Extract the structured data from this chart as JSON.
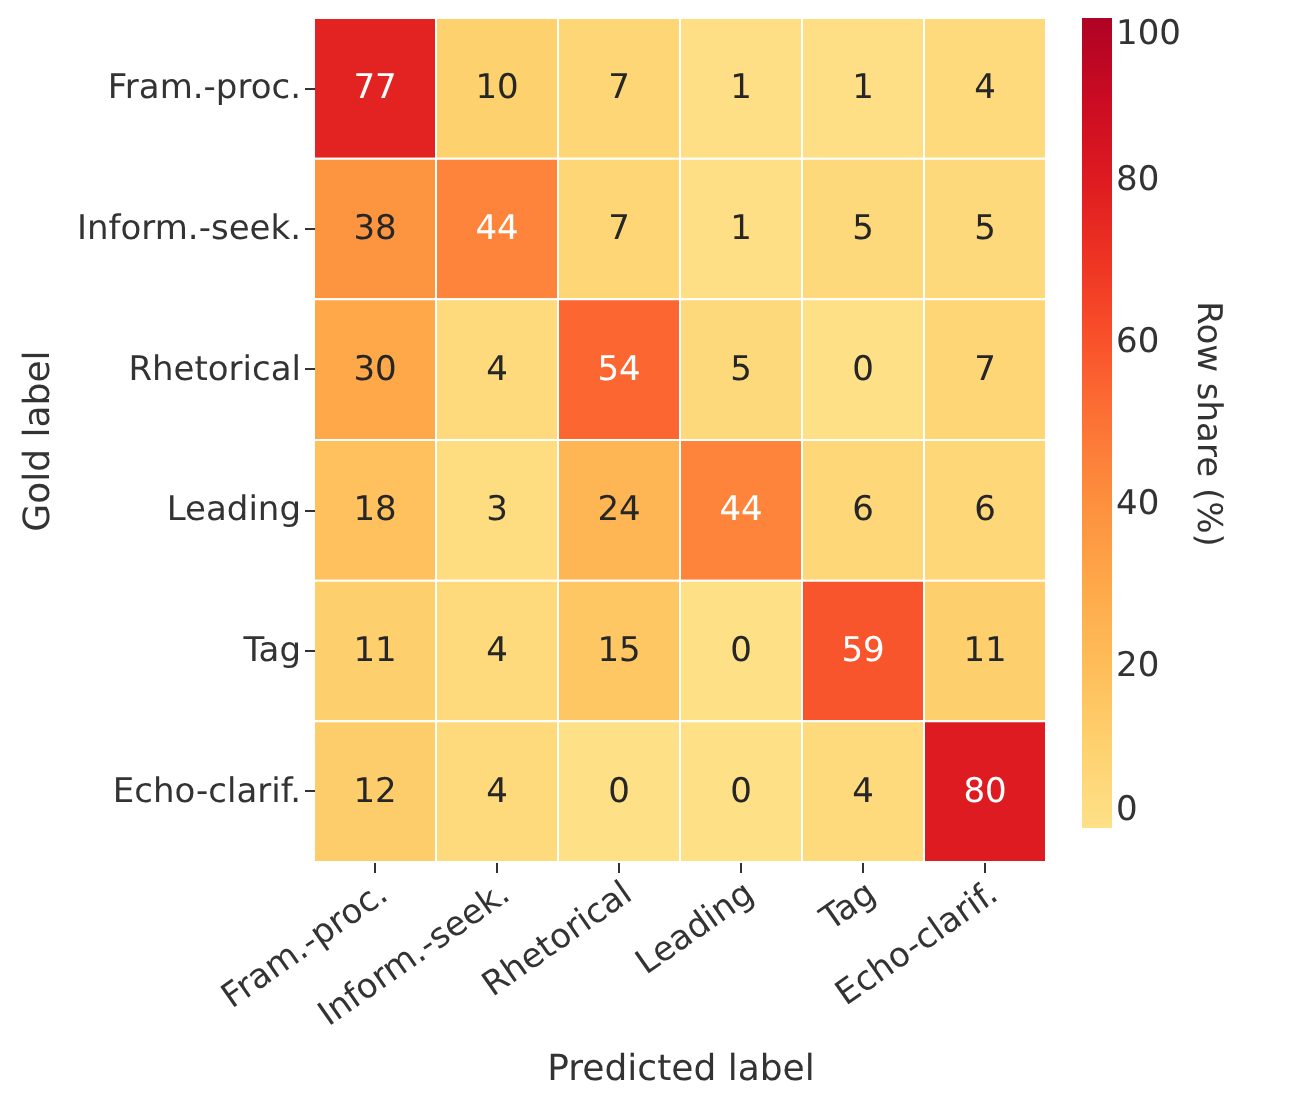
{
  "chart_data": {
    "type": "heatmap",
    "xlabel": "Predicted label",
    "ylabel": "Gold label",
    "clabel": "Row share (%)",
    "categories": [
      "Fram.-proc.",
      "Inform.-seek.",
      "Rhetorical",
      "Leading",
      "Tag",
      "Echo-clarif."
    ],
    "y_categories": [
      "Fram.-proc.",
      "Inform.-seek.",
      "Rhetorical",
      "Leading",
      "Tag",
      "Echo-clarif."
    ],
    "cells": [
      [
        77,
        10,
        7,
        1,
        1,
        4
      ],
      [
        38,
        44,
        7,
        1,
        5,
        5
      ],
      [
        30,
        4,
        54,
        5,
        0,
        7
      ],
      [
        18,
        3,
        24,
        44,
        6,
        6
      ],
      [
        11,
        4,
        15,
        0,
        59,
        11
      ],
      [
        12,
        4,
        0,
        0,
        4,
        80
      ]
    ],
    "clim": [
      0,
      100
    ],
    "cticks": [
      0,
      20,
      40,
      60,
      80,
      100
    ],
    "data_labels": true
  }
}
